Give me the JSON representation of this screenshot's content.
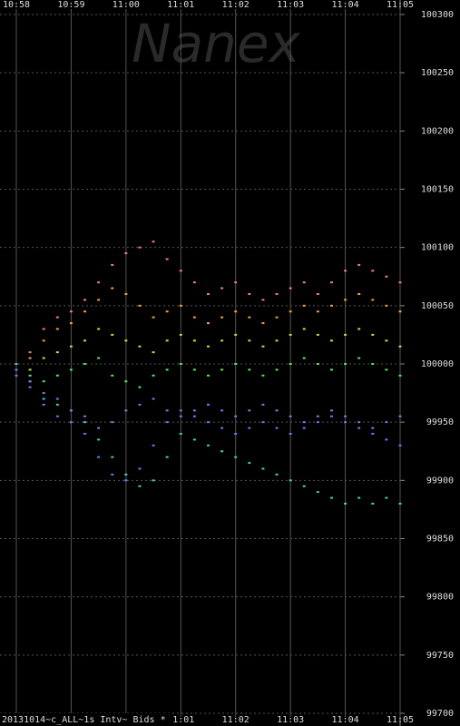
{
  "chart_data": {
    "type": "scatter",
    "watermark": "Nanex",
    "footer": "20131014~c_ALL~1s Intv~ Bids *",
    "x": [
      658,
      658.25,
      658.5,
      658.75,
      659,
      659.25,
      659.5,
      659.75,
      660,
      660.25,
      660.5,
      660.75,
      661,
      661.25,
      661.5,
      661.75,
      662,
      662.25,
      662.5,
      662.75,
      663,
      663.25,
      663.5,
      663.75,
      664,
      664.25,
      664.5,
      664.75,
      665
    ],
    "xlim": [
      658,
      665
    ],
    "xticks": [
      {
        "value": 658,
        "label": "10:58"
      },
      {
        "value": 659,
        "label": "10:59"
      },
      {
        "value": 660,
        "label": "11:00"
      },
      {
        "value": 661,
        "label": "11:01"
      },
      {
        "value": 662,
        "label": "11:02"
      },
      {
        "value": 663,
        "label": "11:03"
      },
      {
        "value": 664,
        "label": "11:04"
      },
      {
        "value": 665,
        "label": "11:05"
      }
    ],
    "ylim": [
      99700,
      100300
    ],
    "yticks": [
      99700,
      99750,
      99800,
      99850,
      99900,
      99950,
      100000,
      100050,
      100100,
      100150,
      100200,
      100250,
      100300
    ],
    "grid": true,
    "series": [
      {
        "color": "#f08070",
        "values": [
          100000,
          100010,
          100030,
          100040,
          100045,
          100055,
          100070,
          100085,
          100095,
          100100,
          100105,
          100090,
          100080,
          100070,
          100060,
          100065,
          100070,
          100060,
          100055,
          100060,
          100065,
          100070,
          100060,
          100070,
          100080,
          100085,
          100080,
          100075,
          100070
        ]
      },
      {
        "color": "#f0a040",
        "values": [
          100000,
          100005,
          100020,
          100030,
          100035,
          100045,
          100055,
          100065,
          100060,
          100050,
          100040,
          100045,
          100050,
          100040,
          100035,
          100040,
          100045,
          100040,
          100035,
          100040,
          100045,
          100050,
          100045,
          100050,
          100055,
          100060,
          100055,
          100050,
          100045
        ]
      },
      {
        "color": "#c0e040",
        "values": [
          100000,
          99995,
          100005,
          100010,
          100015,
          100020,
          100030,
          100025,
          100020,
          100015,
          100010,
          100020,
          100025,
          100020,
          100015,
          100020,
          100025,
          100020,
          100015,
          100020,
          100025,
          100030,
          100025,
          100020,
          100025,
          100030,
          100025,
          100020,
          100015
        ]
      },
      {
        "color": "#60e060",
        "values": [
          99995,
          99990,
          99985,
          99990,
          99995,
          100000,
          100005,
          99990,
          99985,
          99980,
          99990,
          99995,
          100000,
          99995,
          99990,
          99995,
          100000,
          99995,
          99990,
          99995,
          100000,
          100005,
          100000,
          99995,
          100000,
          100005,
          100000,
          99995,
          99990
        ]
      },
      {
        "color": "#40d0c0",
        "values": [
          100000,
          99985,
          99970,
          99965,
          99960,
          99950,
          99935,
          99920,
          99905,
          99895,
          99900,
          99920,
          99940,
          99935,
          99930,
          99925,
          99920,
          99915,
          99910,
          99905,
          99900,
          99895,
          99890,
          99885,
          99880,
          99885,
          99880,
          99885,
          99880
        ]
      },
      {
        "color": "#6080f0",
        "values": [
          99995,
          99980,
          99965,
          99955,
          99950,
          99940,
          99920,
          99905,
          99900,
          99910,
          99930,
          99950,
          99960,
          99955,
          99950,
          99945,
          99940,
          99945,
          99950,
          99945,
          99940,
          99945,
          99950,
          99955,
          99950,
          99945,
          99940,
          99935,
          99930
        ]
      },
      {
        "color": "#9070e0",
        "values": [
          99990,
          99985,
          99975,
          99970,
          99960,
          99955,
          99945,
          99950,
          99960,
          99965,
          99970,
          99960,
          99955,
          99960,
          99965,
          99960,
          99955,
          99960,
          99965,
          99960,
          99955,
          99950,
          99955,
          99960,
          99955,
          99950,
          99945,
          99950,
          99955
        ]
      }
    ]
  }
}
